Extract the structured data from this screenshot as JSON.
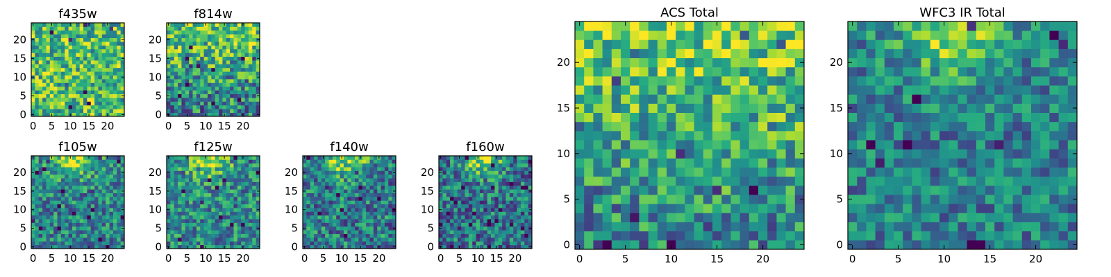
{
  "figure": {
    "colormap": "viridis",
    "colors": {
      "frame": "#000000",
      "background": "#ffffff"
    }
  },
  "chart_data": [
    {
      "type": "heatmap",
      "title": "f435w",
      "grid_size": 25,
      "xlim": [
        0,
        24
      ],
      "ylim": [
        0,
        24
      ],
      "xticks": [
        "0",
        "5",
        "10",
        "15",
        "20"
      ],
      "yticks": [
        "0",
        "5",
        "10",
        "15",
        "20"
      ],
      "value_range": [
        0,
        1
      ],
      "pattern": "uniform-noise",
      "mean_level": 0.68,
      "noise": 0.32,
      "seed": 11
    },
    {
      "type": "heatmap",
      "title": "f814w",
      "grid_size": 25,
      "xlim": [
        0,
        24
      ],
      "ylim": [
        0,
        24
      ],
      "xticks": [
        "0",
        "5",
        "10",
        "15",
        "20"
      ],
      "yticks": [
        "0",
        "5",
        "10",
        "15",
        "20"
      ],
      "value_range": [
        0,
        1
      ],
      "pattern": "top-bright",
      "mean_level": 0.6,
      "noise": 0.34,
      "seed": 23
    },
    {
      "type": "heatmap",
      "title": "f105w",
      "grid_size": 25,
      "xlim": [
        0,
        24
      ],
      "ylim": [
        0,
        24
      ],
      "xticks": [
        "0",
        "5",
        "10",
        "15",
        "20"
      ],
      "yticks": [
        "0",
        "5",
        "10",
        "15",
        "20"
      ],
      "value_range": [
        0,
        1
      ],
      "pattern": "top-center-bright",
      "mean_level": 0.5,
      "noise": 0.28,
      "seed": 37
    },
    {
      "type": "heatmap",
      "title": "f125w",
      "grid_size": 25,
      "xlim": [
        0,
        24
      ],
      "ylim": [
        0,
        24
      ],
      "xticks": [
        "0",
        "5",
        "10",
        "15",
        "20"
      ],
      "yticks": [
        "0",
        "5",
        "10",
        "15",
        "20"
      ],
      "value_range": [
        0,
        1
      ],
      "pattern": "top-center-bright",
      "mean_level": 0.52,
      "noise": 0.28,
      "seed": 41
    },
    {
      "type": "heatmap",
      "title": "f140w",
      "grid_size": 25,
      "xlim": [
        0,
        24
      ],
      "ylim": [
        0,
        24
      ],
      "xticks": [
        "0",
        "5",
        "10",
        "15",
        "20"
      ],
      "yticks": [
        "0",
        "5",
        "10",
        "15",
        "20"
      ],
      "value_range": [
        0,
        1
      ],
      "pattern": "top-center-bright",
      "mean_level": 0.47,
      "noise": 0.3,
      "seed": 53
    },
    {
      "type": "heatmap",
      "title": "f160w",
      "grid_size": 25,
      "xlim": [
        0,
        24
      ],
      "ylim": [
        0,
        24
      ],
      "xticks": [
        "0",
        "5",
        "10",
        "15",
        "20"
      ],
      "yticks": [
        "0",
        "5",
        "10",
        "15",
        "20"
      ],
      "value_range": [
        0,
        1
      ],
      "pattern": "top-center-bright",
      "mean_level": 0.44,
      "noise": 0.3,
      "seed": 67
    },
    {
      "type": "heatmap",
      "title": "ACS Total",
      "grid_size": 25,
      "xlim": [
        0,
        24
      ],
      "ylim": [
        0,
        24
      ],
      "xticks": [
        "0",
        "5",
        "10",
        "15",
        "20"
      ],
      "yticks": [
        "0",
        "5",
        "10",
        "15",
        "20"
      ],
      "value_range": [
        0,
        1
      ],
      "pattern": "top-bright",
      "mean_level": 0.62,
      "noise": 0.3,
      "seed": 79
    },
    {
      "type": "heatmap",
      "title": "WFC3 IR Total",
      "grid_size": 25,
      "xlim": [
        0,
        24
      ],
      "ylim": [
        0,
        24
      ],
      "xticks": [
        "0",
        "5",
        "10",
        "15",
        "20"
      ],
      "yticks": [
        "0",
        "5",
        "10",
        "15",
        "20"
      ],
      "value_range": [
        0,
        1
      ],
      "pattern": "top-center-bright",
      "mean_level": 0.48,
      "noise": 0.24,
      "seed": 97
    }
  ]
}
